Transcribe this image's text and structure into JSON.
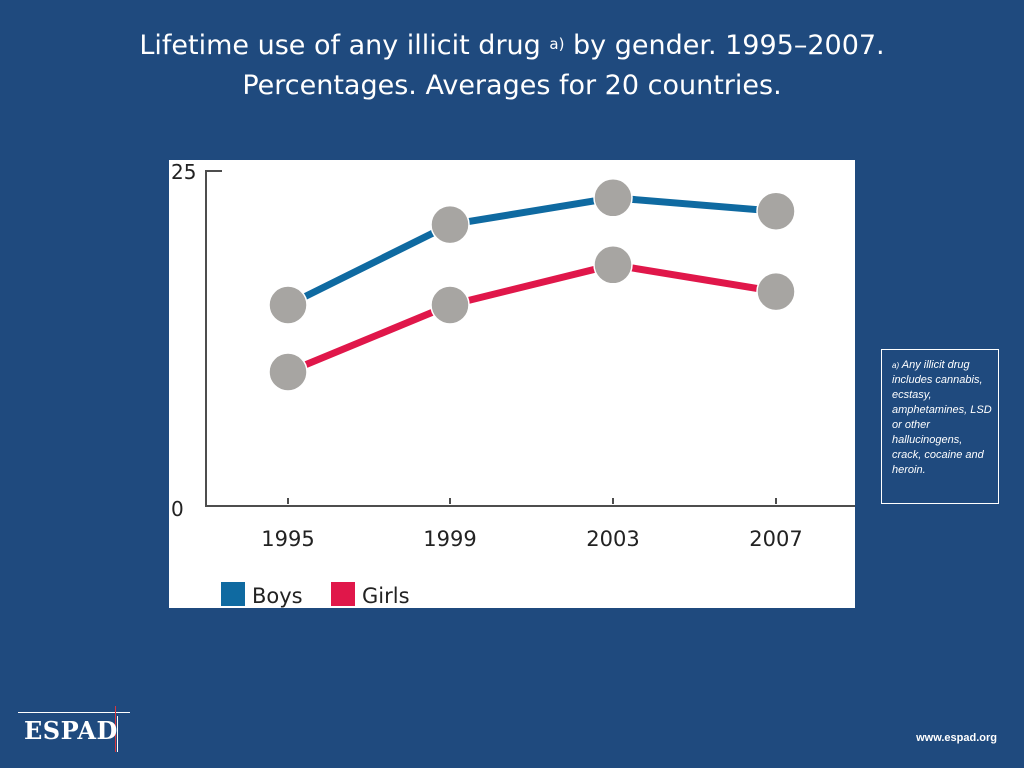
{
  "title": {
    "line1_main": "Lifetime use of any illicit drug ",
    "line1_sup": "a)",
    "line1_rest": " by gender. 1995–2007.",
    "line2": "Percentages. Averages for 20 countries."
  },
  "chart_data": {
    "type": "line",
    "categories": [
      "1995",
      "1999",
      "2003",
      "2007"
    ],
    "series": [
      {
        "name": "Boys",
        "values": [
          15,
          21,
          23,
          22
        ],
        "color": "#0f6aa1"
      },
      {
        "name": "Girls",
        "values": [
          10,
          15,
          18,
          16
        ],
        "color": "#e0174a"
      }
    ],
    "ylim": [
      0,
      25
    ],
    "yticks": [
      "0",
      "25"
    ],
    "marker_color": "#a7a5a2",
    "legend_placement": "bottom-left",
    "grid": false
  },
  "footnote": {
    "sup": "a)",
    "text": "Any illicit drug includes cannabis, ecstasy, amphetamines, LSD or other hallucinogens, crack, cocaine and heroin."
  },
  "logo": {
    "text": "ESPAD"
  },
  "url": "www.espad.org",
  "colors": {
    "background": "#1f4a7e",
    "panel": "#ffffff",
    "text": "#ffffff"
  }
}
